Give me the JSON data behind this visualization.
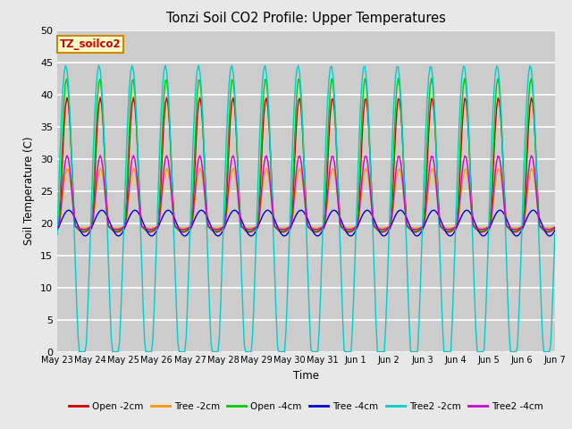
{
  "title": "Tonzi Soil CO2 Profile: Upper Temperatures",
  "ylabel": "Soil Temperature (C)",
  "xlabel": "Time",
  "ylim": [
    0,
    50
  ],
  "label_text": "TZ_soilco2",
  "series": [
    {
      "label": "Open -2cm",
      "color": "#cc0000"
    },
    {
      "label": "Tree -2cm",
      "color": "#ff9900"
    },
    {
      "label": "Open -4cm",
      "color": "#00cc00"
    },
    {
      "label": "Tree -4cm",
      "color": "#0000cc"
    },
    {
      "label": "Tree2 -2cm",
      "color": "#00cccc"
    },
    {
      "label": "Tree2 -4cm",
      "color": "#cc00cc"
    }
  ],
  "xtick_labels": [
    "May 23",
    "May 24",
    "May 25",
    "May 26",
    "May 27",
    "May 28",
    "May 29",
    "May 30",
    "May 31",
    "Jun 1",
    "Jun 2",
    "Jun 3",
    "Jun 4",
    "Jun 5",
    "Jun 6",
    "Jun 7"
  ],
  "fig_bg": "#e8e8e8",
  "plot_bg": "#cccccc",
  "grid_color": "#bbbbbb",
  "n_days": 15,
  "n_points": 360
}
